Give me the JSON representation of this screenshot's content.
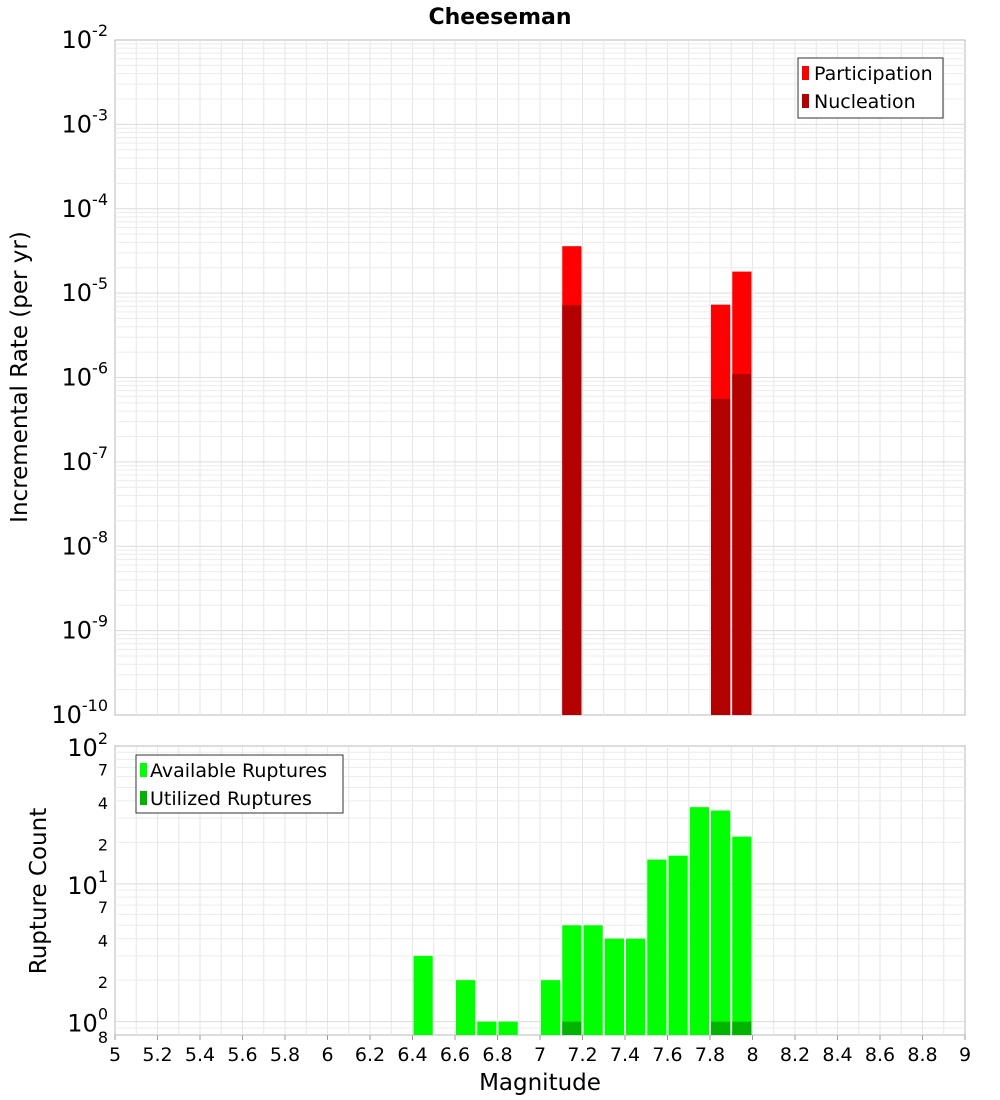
{
  "chart_data": {
    "type": "bar",
    "title": "Cheeseman",
    "xlabel": "Magnitude",
    "xlim": [
      5,
      9
    ],
    "x_ticks": [
      "5",
      "5.2",
      "5.4",
      "5.6",
      "5.8",
      "6",
      "6.2",
      "6.4",
      "6.6",
      "6.8",
      "7",
      "7.2",
      "7.4",
      "7.6",
      "7.8",
      "8",
      "8.2",
      "8.4",
      "8.6",
      "8.8",
      "9"
    ],
    "bin_width": 0.1,
    "grid": true,
    "panels": [
      {
        "id": "rate",
        "ylabel": "Incremental Rate (per yr)",
        "yscale": "log",
        "ylim": [
          1e-10,
          0.01
        ],
        "y_ticks": [
          {
            "base": "10",
            "exp": "-10"
          },
          {
            "base": "10",
            "exp": "-9"
          },
          {
            "base": "10",
            "exp": "-8"
          },
          {
            "base": "10",
            "exp": "-7"
          },
          {
            "base": "10",
            "exp": "-6"
          },
          {
            "base": "10",
            "exp": "-5"
          },
          {
            "base": "10",
            "exp": "-4"
          },
          {
            "base": "10",
            "exp": "-3"
          },
          {
            "base": "10",
            "exp": "-2"
          }
        ],
        "legend_position": "top-right",
        "series": [
          {
            "name": "Participation",
            "color": "#ff0000",
            "x": [
              7.15,
              7.85,
              7.95
            ],
            "values": [
              3.6e-05,
              7.3e-06,
              1.8e-05
            ]
          },
          {
            "name": "Nucleation",
            "color": "#b30000",
            "x": [
              7.15,
              7.85,
              7.95
            ],
            "values": [
              7.2e-06,
              5.6e-07,
              1.1e-06
            ]
          }
        ]
      },
      {
        "id": "count",
        "ylabel": "Rupture Count",
        "yscale": "log",
        "ylim": [
          0.8,
          100
        ],
        "y_ticks": [
          {
            "base": "8",
            "exp": ""
          },
          {
            "base": "10",
            "exp": "0"
          },
          {
            "base": "2",
            "exp": ""
          },
          {
            "base": "4",
            "exp": ""
          },
          {
            "base": "7",
            "exp": ""
          },
          {
            "base": "10",
            "exp": "1"
          },
          {
            "base": "2",
            "exp": ""
          },
          {
            "base": "4",
            "exp": ""
          },
          {
            "base": "7",
            "exp": ""
          },
          {
            "base": "10",
            "exp": "2"
          }
        ],
        "legend_position": "top-left",
        "series": [
          {
            "name": "Available Ruptures",
            "color": "#00ff00",
            "x": [
              6.45,
              6.65,
              6.75,
              6.85,
              7.05,
              7.15,
              7.25,
              7.35,
              7.45,
              7.55,
              7.65,
              7.75,
              7.85,
              7.95
            ],
            "values": [
              3,
              2,
              1,
              1,
              2,
              5,
              5,
              4,
              4,
              15,
              16,
              36,
              34,
              22
            ]
          },
          {
            "name": "Utilized Ruptures",
            "color": "#00b300",
            "x": [
              7.15,
              7.85,
              7.95
            ],
            "values": [
              1,
              1,
              1
            ]
          }
        ]
      }
    ]
  }
}
